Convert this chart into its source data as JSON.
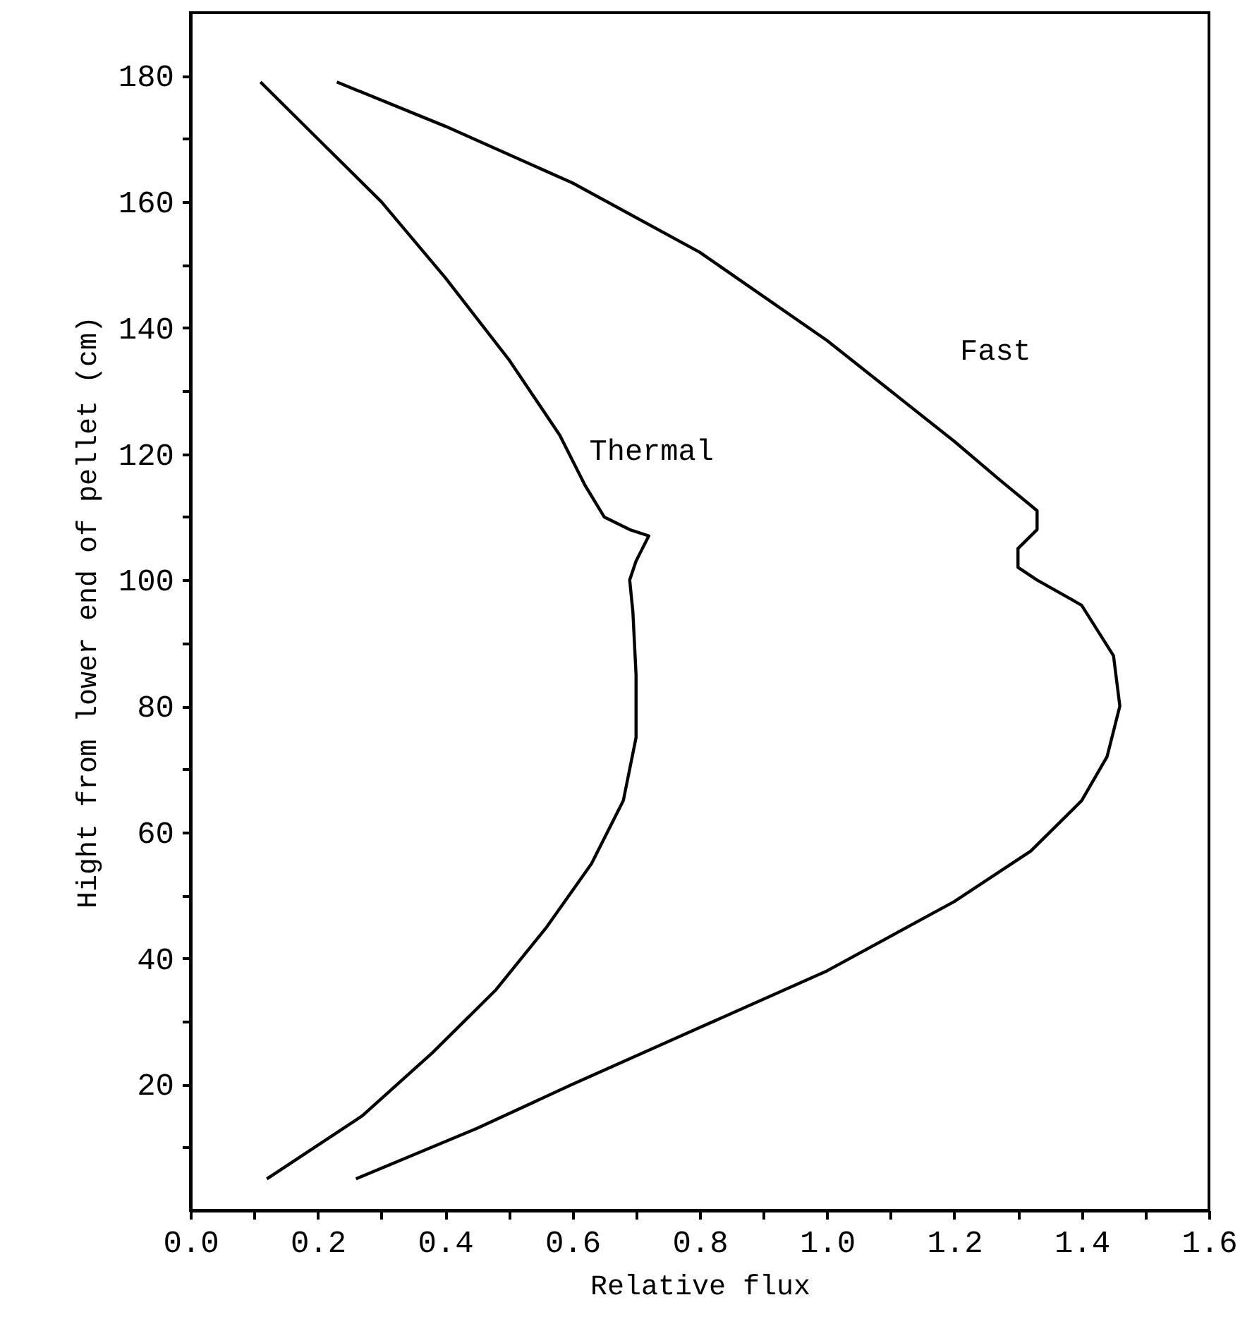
{
  "chart_data": {
    "type": "line",
    "xlabel": "Relative flux",
    "ylabel": "Hight from lower end of pellet (cm)",
    "xlim": [
      0,
      1.6
    ],
    "ylim": [
      0,
      190
    ],
    "xticks": [
      {
        "value": 0,
        "label": "0.0"
      },
      {
        "value": 0.1,
        "label": null
      },
      {
        "value": 0.2,
        "label": "0.2"
      },
      {
        "value": 0.3,
        "label": null
      },
      {
        "value": 0.4,
        "label": "0.4"
      },
      {
        "value": 0.5,
        "label": null
      },
      {
        "value": 0.6,
        "label": "0.6"
      },
      {
        "value": 0.7,
        "label": null
      },
      {
        "value": 0.8,
        "label": "0.8"
      },
      {
        "value": 0.9,
        "label": null
      },
      {
        "value": 1.0,
        "label": "1.0"
      },
      {
        "value": 1.1,
        "label": null
      },
      {
        "value": 1.2,
        "label": "1.2"
      },
      {
        "value": 1.3,
        "label": null
      },
      {
        "value": 1.4,
        "label": "1.4"
      },
      {
        "value": 1.5,
        "label": null
      },
      {
        "value": 1.6,
        "label": "1.6"
      }
    ],
    "yticks": [
      {
        "value": 10,
        "label": null
      },
      20,
      {
        "value": 30,
        "label": null
      },
      40,
      {
        "value": 50,
        "label": null
      },
      60,
      {
        "value": 70,
        "label": null
      },
      80,
      {
        "value": 90,
        "label": null
      },
      100,
      {
        "value": 110,
        "label": null
      },
      120,
      {
        "value": 130,
        "label": null
      },
      140,
      {
        "value": 150,
        "label": null
      },
      160,
      {
        "value": 170,
        "label": null
      },
      180
    ],
    "grid": false,
    "marker": "none",
    "line_style": "solid",
    "series": [
      {
        "color": "#000000",
        "x": [
          0.11,
          0.2,
          0.3,
          0.4,
          0.5,
          0.58,
          0.62,
          0.65,
          0.69,
          0.72,
          0.71,
          0.7,
          0.69,
          0.695,
          0.7,
          0.7,
          0.68,
          0.63,
          0.56,
          0.48,
          0.38,
          0.27,
          0.12
        ],
        "values": [
          179,
          170,
          160,
          148,
          135,
          123,
          115,
          110,
          108,
          107,
          105,
          103,
          100,
          95,
          85,
          75,
          65,
          55,
          45,
          35,
          25,
          15,
          5
        ]
      },
      {
        "color": "#000000",
        "x": [
          0.23,
          0.4,
          0.6,
          0.8,
          1.0,
          1.1,
          1.2,
          1.27,
          1.33,
          1.33,
          1.3,
          1.3,
          1.33,
          1.4,
          1.45,
          1.46,
          1.44,
          1.4,
          1.32,
          1.2,
          1.0,
          0.8,
          0.6,
          0.45,
          0.26
        ],
        "values": [
          179,
          172,
          163,
          152,
          138,
          130,
          122,
          116,
          111,
          108,
          105,
          102,
          100,
          96,
          88,
          80,
          72,
          65,
          57,
          49,
          38,
          29,
          20,
          13,
          5
        ]
      }
    ],
    "annotations": [
      {
        "text": "Thermal",
        "x": 0.6,
        "y": 120
      },
      {
        "text": "Fast",
        "x": 1.2,
        "y": 122
      }
    ]
  }
}
